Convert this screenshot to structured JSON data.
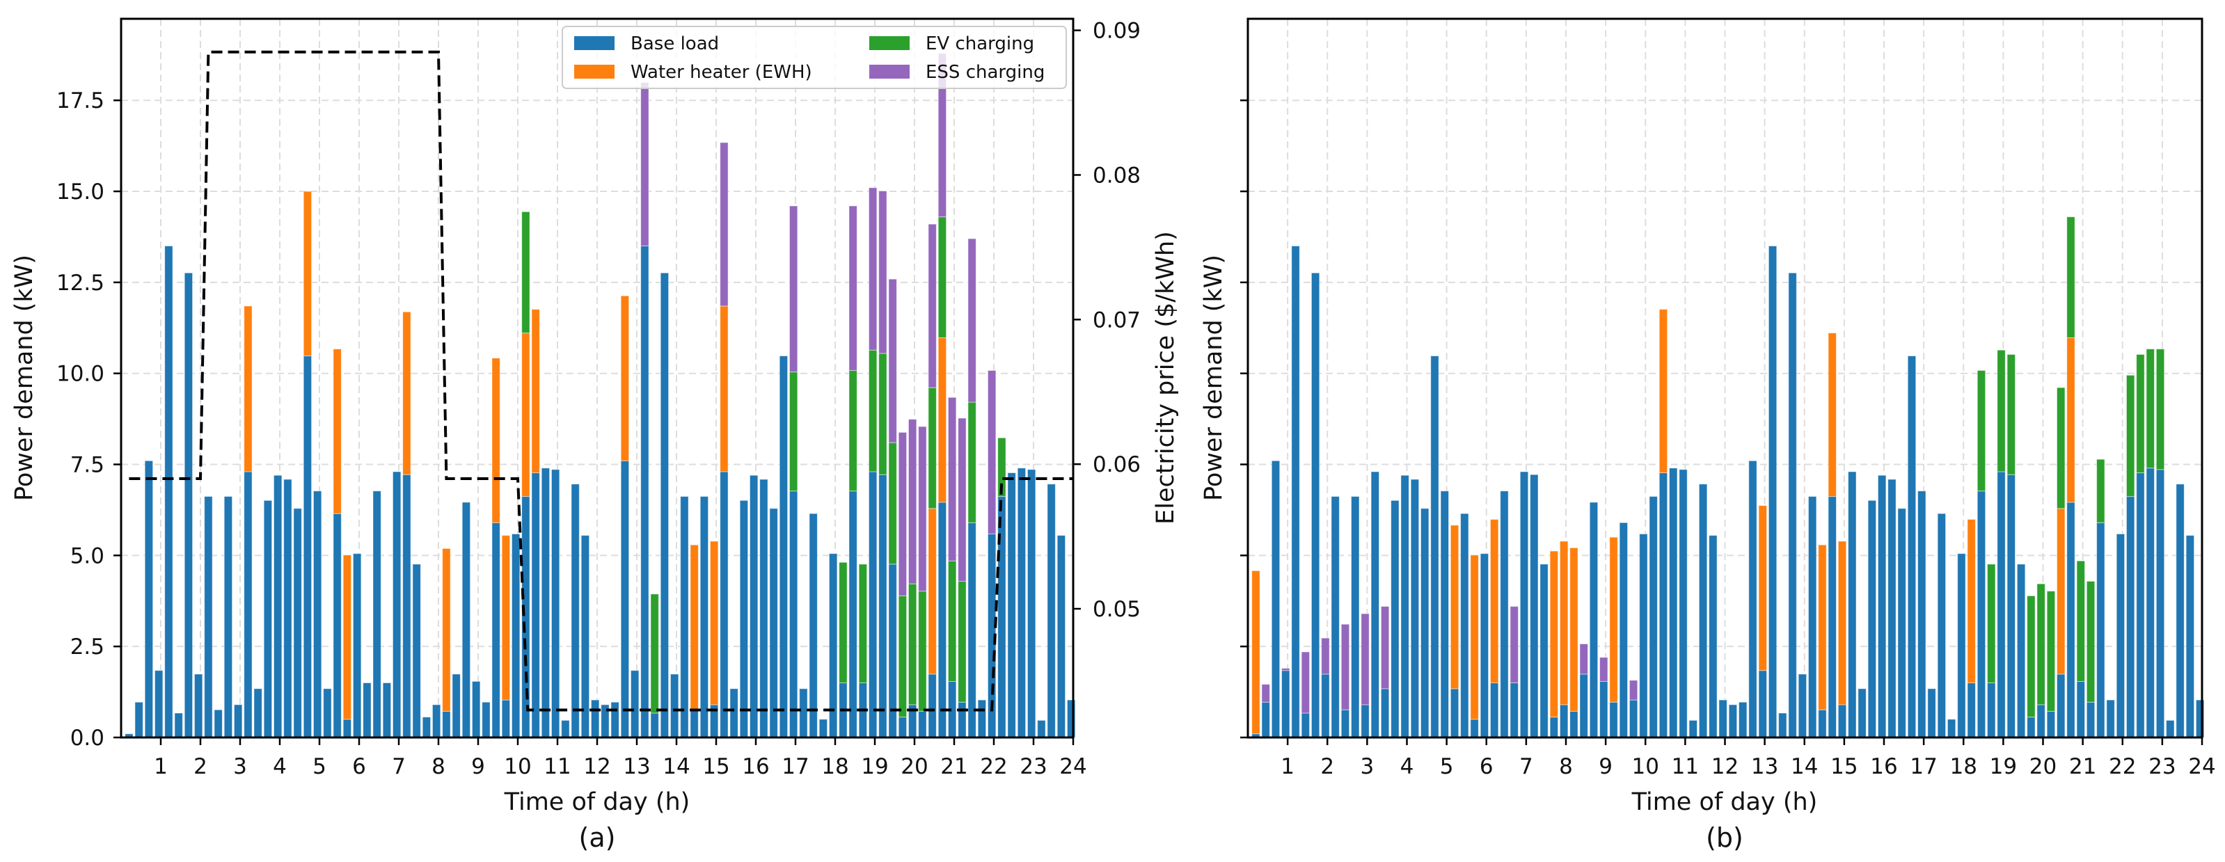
{
  "colors": {
    "base": "#1f77b4",
    "ewh": "#ff7f0e",
    "ev": "#2ca02c",
    "ess": "#9467bd",
    "price": "#000000",
    "grid": "#dddddd"
  },
  "legend": [
    {
      "key": "base",
      "label": "Base load"
    },
    {
      "key": "ewh",
      "label": "Water heater (EWH)"
    },
    {
      "key": "ev",
      "label": "EV charging"
    },
    {
      "key": "ess",
      "label": "ESS charging"
    }
  ],
  "chart_data": [
    {
      "type": "bar",
      "stacked": true,
      "panel_label": "(a)",
      "xlabel": "Time of day (h)",
      "ylabel": "Power demand (kW)",
      "y2label": "Electricity price ($/kWh)",
      "xlim": [
        0,
        24
      ],
      "ylim": [
        0,
        19.74
      ],
      "y2lim": [
        0.0411,
        0.0908
      ],
      "xticks": [
        "1",
        "2",
        "3",
        "4",
        "5",
        "6",
        "7",
        "8",
        "9",
        "10",
        "11",
        "12",
        "13",
        "14",
        "15",
        "16",
        "17",
        "18",
        "19",
        "20",
        "21",
        "22",
        "23",
        "24"
      ],
      "yticks": [
        "0.0",
        "2.5",
        "5.0",
        "7.5",
        "10.0",
        "12.5",
        "15.0",
        "17.5"
      ],
      "y2ticks": [
        "0.05",
        "0.06",
        "0.07",
        "0.08",
        "0.09"
      ],
      "grid": true,
      "legend_position": "top-right",
      "x": {
        "start_h": 0.2,
        "step_h": 0.25,
        "count": 96
      },
      "series": [
        {
          "name": "Base load",
          "key": "base",
          "values": [
            0.1,
            0.97,
            7.6,
            1.84,
            13.5,
            0.67,
            12.76,
            1.74,
            6.62,
            0.76,
            6.62,
            0.9,
            7.3,
            1.34,
            6.51,
            7.2,
            7.09,
            6.29,
            10.48,
            6.77,
            1.34,
            6.15,
            0.5,
            5.05,
            1.5,
            6.77,
            1.5,
            7.3,
            7.22,
            4.76,
            0.56,
            0.9,
            0.72,
            1.74,
            6.46,
            1.54,
            0.97,
            5.9,
            1.03,
            5.59,
            6.62,
            7.27,
            7.4,
            7.36,
            0.47,
            6.96,
            5.55,
            1.03,
            0.9,
            0.97,
            7.6,
            1.84,
            13.5,
            0.67,
            12.76,
            1.74,
            6.62,
            0.76,
            6.62,
            0.9,
            7.3,
            1.34,
            6.51,
            7.2,
            7.09,
            6.29,
            10.48,
            6.77,
            1.34,
            6.15,
            0.5,
            5.05,
            1.5,
            6.77,
            1.5,
            7.3,
            7.22,
            4.76,
            0.56,
            0.9,
            0.72,
            1.74,
            6.46,
            1.54,
            0.97,
            5.9,
            1.03,
            5.59,
            6.62,
            7.27,
            7.4,
            7.36,
            0.47,
            6.96,
            5.55,
            1.03
          ]
        },
        {
          "name": "Water heater (EWH)",
          "key": "ewh",
          "values": [
            0,
            0,
            0,
            0,
            0,
            0,
            0,
            0,
            0,
            0,
            0,
            0,
            4.55,
            0,
            0,
            0,
            0,
            0,
            4.52,
            0,
            0,
            4.52,
            4.51,
            0,
            0,
            0,
            0,
            0,
            4.47,
            0,
            0,
            0,
            4.47,
            0,
            0,
            0,
            0,
            4.52,
            4.52,
            0,
            4.49,
            4.49,
            0,
            0,
            0,
            0,
            0,
            0,
            0,
            0,
            4.53,
            0,
            0,
            0,
            0,
            0,
            0,
            4.53,
            0,
            4.49,
            4.55,
            0,
            0,
            0,
            0,
            0,
            0,
            0,
            0,
            0,
            0,
            0,
            0,
            0,
            0,
            0,
            0,
            0,
            0,
            0,
            0,
            4.55,
            4.52,
            0,
            0,
            0,
            0,
            0,
            0,
            0,
            0,
            0,
            0,
            0,
            0,
            0
          ]
        },
        {
          "name": "EV charging",
          "key": "ev",
          "values": [
            0,
            0,
            0,
            0,
            0,
            0,
            0,
            0,
            0,
            0,
            0,
            0,
            0,
            0,
            0,
            0,
            0,
            0,
            0,
            0,
            0,
            0,
            0,
            0,
            0,
            0,
            0,
            0,
            0,
            0,
            0,
            0,
            0,
            0,
            0,
            0,
            0,
            0,
            0,
            0,
            3.33,
            0,
            0,
            0,
            0,
            0,
            0,
            0,
            0,
            0,
            0,
            0,
            0,
            3.27,
            0,
            0,
            0,
            0,
            0,
            0,
            0,
            0,
            0,
            0,
            0,
            0,
            0,
            3.27,
            0,
            0,
            0,
            0,
            3.31,
            3.31,
            3.26,
            3.34,
            3.33,
            3.34,
            3.33,
            3.32,
            3.3,
            3.32,
            3.32,
            3.31,
            3.32,
            3.31,
            0,
            0,
            1.61,
            0,
            0,
            0,
            0,
            0,
            0,
            0
          ]
        },
        {
          "name": "ESS charging",
          "key": "ess",
          "values": [
            0,
            0,
            0,
            0,
            0,
            0,
            0,
            0,
            0,
            0,
            0,
            0,
            0,
            0,
            0,
            0,
            0,
            0,
            0,
            0,
            0,
            0,
            0,
            0,
            0,
            0,
            0,
            0,
            0,
            0,
            0,
            0,
            0,
            0,
            0,
            0,
            0,
            0,
            0,
            0,
            0,
            0,
            0,
            0,
            0,
            0,
            0,
            0,
            0,
            0,
            0,
            0,
            4.49,
            0,
            0,
            0,
            0,
            0,
            0,
            0,
            4.49,
            0,
            0,
            0,
            0,
            0,
            0,
            4.56,
            0,
            0,
            0,
            0,
            0,
            4.52,
            0,
            4.46,
            4.46,
            4.49,
            4.49,
            4.52,
            4.52,
            4.49,
            4.49,
            4.49,
            4.48,
            4.49,
            0,
            4.49,
            0,
            0,
            0,
            0,
            0,
            0,
            0,
            0
          ]
        }
      ],
      "price_series": {
        "name": "Electricity price",
        "style": "dashed",
        "x": [
          0.2,
          2.0,
          2.2,
          8.0,
          8.2,
          10.0,
          10.25,
          21.95,
          22.2,
          24.0
        ],
        "y": [
          0.059,
          0.059,
          0.0885,
          0.0885,
          0.059,
          0.059,
          0.043,
          0.043,
          0.059,
          0.059
        ]
      }
    },
    {
      "type": "bar",
      "stacked": true,
      "panel_label": "(b)",
      "xlabel": "Time of day (h)",
      "ylabel": "Power demand (kW)",
      "xlim": [
        0,
        24
      ],
      "ylim": [
        0,
        19.74
      ],
      "xticks": [
        "1",
        "2",
        "3",
        "4",
        "5",
        "6",
        "7",
        "8",
        "9",
        "10",
        "11",
        "12",
        "13",
        "14",
        "15",
        "16",
        "17",
        "18",
        "19",
        "20",
        "21",
        "22",
        "23",
        "24"
      ],
      "ytick_values": [
        0,
        2.5,
        5,
        7.5,
        10,
        12.5,
        15,
        17.5
      ],
      "grid": true,
      "x": {
        "start_h": 0.2,
        "step_h": 0.25,
        "count": 96
      },
      "series": [
        {
          "name": "Base load",
          "key": "base",
          "values": [
            0.1,
            0.97,
            7.6,
            1.84,
            13.5,
            0.67,
            12.76,
            1.74,
            6.62,
            0.76,
            6.62,
            0.9,
            7.3,
            1.34,
            6.51,
            7.2,
            7.09,
            6.29,
            10.48,
            6.77,
            1.34,
            6.15,
            0.5,
            5.05,
            1.5,
            6.77,
            1.5,
            7.3,
            7.22,
            4.76,
            0.56,
            0.9,
            0.72,
            1.74,
            6.46,
            1.54,
            0.97,
            5.9,
            1.03,
            5.59,
            6.62,
            7.27,
            7.4,
            7.36,
            0.47,
            6.96,
            5.55,
            1.03,
            0.9,
            0.97,
            7.6,
            1.84,
            13.5,
            0.67,
            12.76,
            1.74,
            6.62,
            0.76,
            6.62,
            0.9,
            7.3,
            1.34,
            6.51,
            7.2,
            7.09,
            6.29,
            10.48,
            6.77,
            1.34,
            6.15,
            0.5,
            5.05,
            1.5,
            6.77,
            1.5,
            7.3,
            7.22,
            4.76,
            0.56,
            0.9,
            0.72,
            1.74,
            6.46,
            1.54,
            0.97,
            5.9,
            1.03,
            5.59,
            6.62,
            7.27,
            7.4,
            7.36,
            0.47,
            6.96,
            5.55,
            1.03
          ]
        },
        {
          "name": "Water heater (EWH)",
          "key": "ewh",
          "values": [
            4.48,
            0,
            0,
            0,
            0,
            0,
            0,
            0,
            0,
            0,
            0,
            0,
            0,
            0,
            0,
            0,
            0,
            0,
            0,
            0,
            4.49,
            0,
            4.51,
            0,
            4.49,
            0,
            0,
            0,
            0,
            0,
            4.56,
            4.49,
            4.49,
            0,
            0,
            0,
            4.53,
            0,
            0,
            0,
            0,
            4.49,
            0,
            0,
            0,
            0,
            0,
            0,
            0,
            0,
            0,
            4.53,
            0,
            0,
            0,
            0,
            0,
            4.53,
            4.49,
            4.49,
            0,
            0,
            0,
            0,
            0,
            0,
            0,
            0,
            0,
            0,
            0,
            0,
            4.49,
            0,
            0,
            0,
            0,
            0,
            0,
            0,
            0,
            4.55,
            4.52,
            0,
            0,
            0,
            0,
            0,
            0,
            0,
            0,
            0,
            0,
            0,
            0,
            0
          ]
        },
        {
          "name": "EV charging",
          "key": "ev",
          "values": [
            0,
            0,
            0,
            0,
            0,
            0,
            0,
            0,
            0,
            0,
            0,
            0,
            0,
            0,
            0,
            0,
            0,
            0,
            0,
            0,
            0,
            0,
            0,
            0,
            0,
            0,
            0,
            0,
            0,
            0,
            0,
            0,
            0,
            0,
            0,
            0,
            0,
            0,
            0,
            0,
            0,
            0,
            0,
            0,
            0,
            0,
            0,
            0,
            0,
            0,
            0,
            0,
            0,
            0,
            0,
            0,
            0,
            0,
            0,
            0,
            0,
            0,
            0,
            0,
            0,
            0,
            0,
            0,
            0,
            0,
            0,
            0,
            0,
            3.31,
            3.26,
            3.34,
            3.3,
            0,
            3.33,
            3.32,
            3.3,
            3.32,
            3.32,
            3.31,
            3.32,
            1.74,
            0,
            0,
            3.33,
            3.25,
            3.27,
            3.31,
            0,
            0,
            0,
            0
          ]
        },
        {
          "name": "ESS charging",
          "key": "ess",
          "values": [
            0,
            0.49,
            0,
            0.06,
            0,
            1.68,
            0,
            0.99,
            0,
            2.35,
            0,
            2.5,
            0,
            2.26,
            0,
            0,
            0,
            0,
            0,
            0,
            0,
            0,
            0,
            0,
            0,
            0,
            2.1,
            0,
            0,
            0,
            0,
            0,
            0,
            0.83,
            0,
            0.66,
            0,
            0,
            0.54,
            0,
            0,
            0,
            0,
            0,
            0,
            0,
            0,
            0,
            0,
            0,
            0,
            0,
            0,
            0,
            0,
            0,
            0,
            0,
            0,
            0,
            0,
            0,
            0,
            0,
            0,
            0,
            0,
            0,
            0,
            0,
            0,
            0,
            0,
            0,
            0,
            0,
            0,
            0,
            0,
            0,
            0,
            0,
            0,
            0,
            0,
            0,
            0,
            0,
            0,
            0,
            0,
            0,
            0,
            0,
            0,
            0
          ]
        }
      ]
    }
  ]
}
